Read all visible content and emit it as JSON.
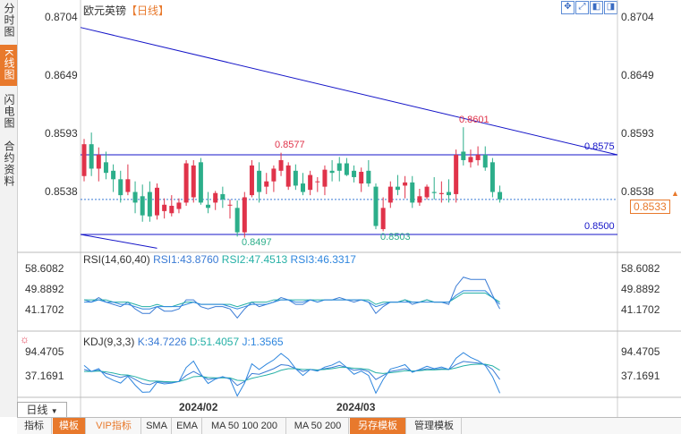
{
  "sidebar": {
    "tabs": [
      {
        "label": "分时图"
      },
      {
        "label": "K线图"
      },
      {
        "label": "闪电图"
      },
      {
        "label": "合约资料"
      }
    ]
  },
  "header": {
    "title": "欧元英镑",
    "period": "【日线】"
  },
  "colors": {
    "up": "#e0334a",
    "down": "#2cae8a",
    "trend": "#1515c8",
    "accent": "#e8792c",
    "rsi1": "#3a7bd5",
    "rsi2": "#25b0a6",
    "rsi3": "#2e86de"
  },
  "price_axis": {
    "ticks": [
      "0.8704",
      "0.8649",
      "0.8593",
      "0.8538"
    ],
    "current": "0.8533"
  },
  "annotations": {
    "high1": "0.8577",
    "high2": "0.8601",
    "low1": "0.8497",
    "low2": "0.8503",
    "res": "0.8575",
    "sup": "0.8500"
  },
  "rsi_panel": {
    "label": "RSI(14,60,40)",
    "rsi1": "RSI1:43.8760",
    "rsi2": "RSI2:47.4513",
    "rsi3": "RSI3:46.3317",
    "ticks": [
      "58.6082",
      "49.8892",
      "41.1702"
    ]
  },
  "kdj_panel": {
    "label": "KDJ(9,3,3)",
    "k": "K:34.7226",
    "d": "D:51.4057",
    "j": "J:1.3565",
    "ticks": [
      "94.4705",
      "37.1691"
    ]
  },
  "date_axis": {
    "labels": [
      "2024/02",
      "2024/03"
    ]
  },
  "bottom_toolbar": {
    "period": "日线",
    "tabs": [
      "指标",
      "模板",
      "VIP指标",
      "SMA",
      "EMA",
      "MA 50 100 200",
      "MA 50 200",
      "另存模板",
      "管理模板"
    ]
  },
  "chart_data": {
    "type": "candlestick",
    "title": "欧元英镑【日线】",
    "price_range": [
      0.848,
      0.8715
    ],
    "candles": [
      {
        "o": 0.8555,
        "h": 0.859,
        "l": 0.855,
        "c": 0.8585
      },
      {
        "o": 0.8585,
        "h": 0.8596,
        "l": 0.8555,
        "c": 0.8562
      },
      {
        "o": 0.8562,
        "h": 0.8582,
        "l": 0.855,
        "c": 0.8575
      },
      {
        "o": 0.8568,
        "h": 0.8578,
        "l": 0.8552,
        "c": 0.8558
      },
      {
        "o": 0.856,
        "h": 0.8566,
        "l": 0.854,
        "c": 0.8552
      },
      {
        "o": 0.8552,
        "h": 0.856,
        "l": 0.853,
        "c": 0.8537
      },
      {
        "o": 0.854,
        "h": 0.8566,
        "l": 0.8537,
        "c": 0.8552
      },
      {
        "o": 0.854,
        "h": 0.855,
        "l": 0.852,
        "c": 0.853
      },
      {
        "o": 0.8536,
        "h": 0.8547,
        "l": 0.8512,
        "c": 0.8518
      },
      {
        "o": 0.854,
        "h": 0.855,
        "l": 0.8512,
        "c": 0.8517
      },
      {
        "o": 0.8518,
        "h": 0.8548,
        "l": 0.8514,
        "c": 0.8544
      },
      {
        "o": 0.8522,
        "h": 0.8534,
        "l": 0.8515,
        "c": 0.8528
      },
      {
        "o": 0.852,
        "h": 0.8537,
        "l": 0.8517,
        "c": 0.8527
      },
      {
        "o": 0.8524,
        "h": 0.8534,
        "l": 0.852,
        "c": 0.853
      },
      {
        "o": 0.853,
        "h": 0.857,
        "l": 0.8527,
        "c": 0.8567
      },
      {
        "o": 0.8535,
        "h": 0.857,
        "l": 0.853,
        "c": 0.8565
      },
      {
        "o": 0.8568,
        "h": 0.8572,
        "l": 0.8528,
        "c": 0.853
      },
      {
        "o": 0.8528,
        "h": 0.854,
        "l": 0.852,
        "c": 0.8525
      },
      {
        "o": 0.853,
        "h": 0.8541,
        "l": 0.8523,
        "c": 0.8539
      },
      {
        "o": 0.8538,
        "h": 0.8545,
        "l": 0.8525,
        "c": 0.8533
      },
      {
        "o": 0.8528,
        "h": 0.8533,
        "l": 0.8515,
        "c": 0.8528
      },
      {
        "o": 0.8525,
        "h": 0.8532,
        "l": 0.8498,
        "c": 0.8502
      },
      {
        "o": 0.8502,
        "h": 0.854,
        "l": 0.8497,
        "c": 0.8535
      },
      {
        "o": 0.8537,
        "h": 0.857,
        "l": 0.8535,
        "c": 0.8565
      },
      {
        "o": 0.856,
        "h": 0.8568,
        "l": 0.853,
        "c": 0.854
      },
      {
        "o": 0.8545,
        "h": 0.8558,
        "l": 0.8538,
        "c": 0.855
      },
      {
        "o": 0.855,
        "h": 0.8565,
        "l": 0.854,
        "c": 0.8562
      },
      {
        "o": 0.856,
        "h": 0.8577,
        "l": 0.8555,
        "c": 0.857
      },
      {
        "o": 0.8545,
        "h": 0.8568,
        "l": 0.8542,
        "c": 0.8565
      },
      {
        "o": 0.856,
        "h": 0.8566,
        "l": 0.8542,
        "c": 0.8546
      },
      {
        "o": 0.8548,
        "h": 0.8558,
        "l": 0.8537,
        "c": 0.854
      },
      {
        "o": 0.8542,
        "h": 0.856,
        "l": 0.8537,
        "c": 0.8556
      },
      {
        "o": 0.855,
        "h": 0.8554,
        "l": 0.854,
        "c": 0.855
      },
      {
        "o": 0.8545,
        "h": 0.8565,
        "l": 0.8537,
        "c": 0.8561
      },
      {
        "o": 0.856,
        "h": 0.857,
        "l": 0.855,
        "c": 0.8558
      },
      {
        "o": 0.8567,
        "h": 0.8573,
        "l": 0.855,
        "c": 0.856
      },
      {
        "o": 0.8567,
        "h": 0.8572,
        "l": 0.8555,
        "c": 0.8556
      },
      {
        "o": 0.856,
        "h": 0.8565,
        "l": 0.8549,
        "c": 0.8554
      },
      {
        "o": 0.8548,
        "h": 0.8563,
        "l": 0.854,
        "c": 0.8559
      },
      {
        "o": 0.856,
        "h": 0.857,
        "l": 0.8545,
        "c": 0.8548
      },
      {
        "o": 0.8545,
        "h": 0.8548,
        "l": 0.8505,
        "c": 0.8508
      },
      {
        "o": 0.8505,
        "h": 0.8535,
        "l": 0.8503,
        "c": 0.8525
      },
      {
        "o": 0.853,
        "h": 0.855,
        "l": 0.8525,
        "c": 0.8545
      },
      {
        "o": 0.8545,
        "h": 0.8556,
        "l": 0.8537,
        "c": 0.8542
      },
      {
        "o": 0.8546,
        "h": 0.8555,
        "l": 0.8534,
        "c": 0.8549
      },
      {
        "o": 0.8549,
        "h": 0.8555,
        "l": 0.8525,
        "c": 0.853
      },
      {
        "o": 0.853,
        "h": 0.8543,
        "l": 0.8527,
        "c": 0.8536
      },
      {
        "o": 0.8535,
        "h": 0.8547,
        "l": 0.8533,
        "c": 0.8545
      },
      {
        "o": 0.854,
        "h": 0.8554,
        "l": 0.8533,
        "c": 0.8539
      },
      {
        "o": 0.8538,
        "h": 0.855,
        "l": 0.853,
        "c": 0.8539
      },
      {
        "o": 0.854,
        "h": 0.8552,
        "l": 0.853,
        "c": 0.8537
      },
      {
        "o": 0.8538,
        "h": 0.858,
        "l": 0.853,
        "c": 0.8575
      },
      {
        "o": 0.8578,
        "h": 0.8601,
        "l": 0.8565,
        "c": 0.857
      },
      {
        "o": 0.8568,
        "h": 0.858,
        "l": 0.8563,
        "c": 0.8573
      },
      {
        "o": 0.857,
        "h": 0.8583,
        "l": 0.8565,
        "c": 0.8575
      },
      {
        "o": 0.8575,
        "h": 0.8583,
        "l": 0.856,
        "c": 0.8563
      },
      {
        "o": 0.8568,
        "h": 0.8572,
        "l": 0.8535,
        "c": 0.854
      },
      {
        "o": 0.854,
        "h": 0.8546,
        "l": 0.853,
        "c": 0.8533
      }
    ],
    "trendlines": [
      {
        "name": "descending",
        "from": {
          "index": 0,
          "price": 0.8695
        },
        "to": {
          "index": 71,
          "price": 0.8575
        }
      },
      {
        "name": "resistance",
        "from": {
          "index": 0,
          "price": 0.8575
        },
        "to": {
          "index": 71,
          "price": 0.8575
        }
      },
      {
        "name": "support",
        "from": {
          "index": 0,
          "price": 0.85
        },
        "to": {
          "index": 71,
          "price": 0.85
        }
      },
      {
        "name": "short-down",
        "from": {
          "index": 0,
          "price": 0.85
        },
        "to": {
          "index": 10,
          "price": 0.8487
        }
      }
    ],
    "rsi": {
      "range": [
        35,
        65
      ],
      "rsi1": [
        48,
        47,
        49,
        47,
        46,
        45,
        47,
        44,
        42,
        42,
        45,
        43,
        43,
        44,
        48,
        48,
        45,
        44,
        45,
        45,
        44,
        40,
        44,
        47,
        45,
        46,
        47,
        49,
        48,
        46,
        46,
        48,
        47,
        48,
        48,
        49,
        48,
        47,
        48,
        47,
        42,
        45,
        47,
        47,
        48,
        46,
        47,
        48,
        47,
        47,
        46,
        54,
        58,
        57,
        57,
        57,
        50,
        44
      ],
      "rsi2": [
        48,
        48,
        48,
        48,
        47,
        47,
        47,
        46,
        45,
        45,
        46,
        45,
        45,
        46,
        47,
        47,
        46,
        46,
        46,
        46,
        46,
        45,
        46,
        47,
        47,
        47,
        48,
        48,
        48,
        48,
        48,
        48,
        48,
        48,
        48,
        48,
        48,
        48,
        48,
        48,
        46,
        47,
        47,
        47,
        48,
        47,
        47,
        48,
        47,
        47,
        47,
        49,
        51,
        51,
        51,
        51,
        49,
        47
      ],
      "rsi3": [
        47,
        47,
        48,
        47,
        47,
        46,
        46,
        45,
        44,
        44,
        45,
        45,
        45,
        45,
        46,
        47,
        46,
        46,
        46,
        46,
        45,
        44,
        45,
        46,
        46,
        46,
        47,
        48,
        48,
        47,
        47,
        48,
        47,
        48,
        48,
        48,
        48,
        48,
        48,
        47,
        45,
        46,
        47,
        47,
        47,
        47,
        47,
        47,
        47,
        47,
        47,
        50,
        52,
        52,
        52,
        52,
        49,
        46
      ]
    },
    "kdj": {
      "range": [
        -5,
        120
      ],
      "k": [
        60,
        55,
        58,
        50,
        45,
        40,
        45,
        35,
        25,
        22,
        30,
        28,
        28,
        30,
        45,
        55,
        45,
        35,
        38,
        40,
        38,
        20,
        30,
        50,
        48,
        55,
        62,
        72,
        70,
        62,
        55,
        60,
        58,
        62,
        65,
        70,
        65,
        58,
        60,
        55,
        35,
        45,
        55,
        58,
        62,
        55,
        58,
        62,
        60,
        62,
        60,
        72,
        80,
        78,
        76,
        72,
        60,
        35
      ],
      "d": [
        55,
        55,
        56,
        54,
        51,
        47,
        46,
        42,
        36,
        31,
        31,
        30,
        29,
        30,
        35,
        42,
        43,
        40,
        39,
        39,
        39,
        33,
        32,
        38,
        42,
        46,
        51,
        58,
        62,
        62,
        60,
        60,
        59,
        60,
        62,
        65,
        65,
        63,
        62,
        60,
        52,
        50,
        52,
        54,
        57,
        56,
        57,
        59,
        59,
        60,
        60,
        64,
        69,
        72,
        73,
        73,
        69,
        58
      ],
      "j": [
        70,
        55,
        62,
        42,
        33,
        26,
        43,
        21,
        3,
        4,
        28,
        24,
        26,
        30,
        65,
        81,
        49,
        25,
        36,
        42,
        36,
        -6,
        26,
        74,
        60,
        73,
        84,
        100,
        86,
        62,
        45,
        60,
        56,
        66,
        71,
        80,
        65,
        48,
        56,
        45,
        1,
        35,
        61,
        66,
        72,
        53,
        60,
        68,
        62,
        66,
        60,
        88,
        102,
        90,
        82,
        70,
        42,
        1
      ]
    }
  }
}
